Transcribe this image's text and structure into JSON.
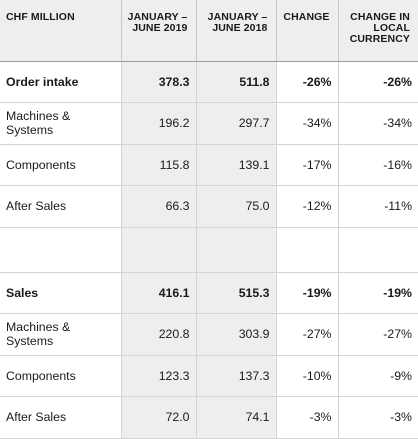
{
  "headers": [
    "CHF MILLION",
    "JANUARY – JUNE 2019",
    "JANUARY – JUNE 2018",
    "CHANGE",
    "CHANGE IN LOCAL CURRENCY"
  ],
  "rows": [
    {
      "label": "Order intake",
      "h1": "378.3",
      "h2": "511.8",
      "change": "-26%",
      "local": "-26%"
    },
    {
      "label": "Machines & Systems",
      "h1": "196.2",
      "h2": "297.7",
      "change": "-34%",
      "local": "-34%"
    },
    {
      "label": "Components",
      "h1": "115.8",
      "h2": "139.1",
      "change": "-17%",
      "local": "-16%"
    },
    {
      "label": "After Sales",
      "h1": "66.3",
      "h2": "75.0",
      "change": "-12%",
      "local": "-11%"
    },
    {
      "label": "",
      "h1": "",
      "h2": "",
      "change": "",
      "local": ""
    },
    {
      "label": "Sales",
      "h1": "416.1",
      "h2": "515.3",
      "change": "-19%",
      "local": "-19%"
    },
    {
      "label": "Machines & Systems",
      "h1": "220.8",
      "h2": "303.9",
      "change": "-27%",
      "local": "-27%"
    },
    {
      "label": "Components",
      "h1": "123.3",
      "h2": "137.3",
      "change": "-10%",
      "local": "-9%"
    },
    {
      "label": "After Sales",
      "h1": "72.0",
      "h2": "74.1",
      "change": "-3%",
      "local": "-3%"
    }
  ]
}
